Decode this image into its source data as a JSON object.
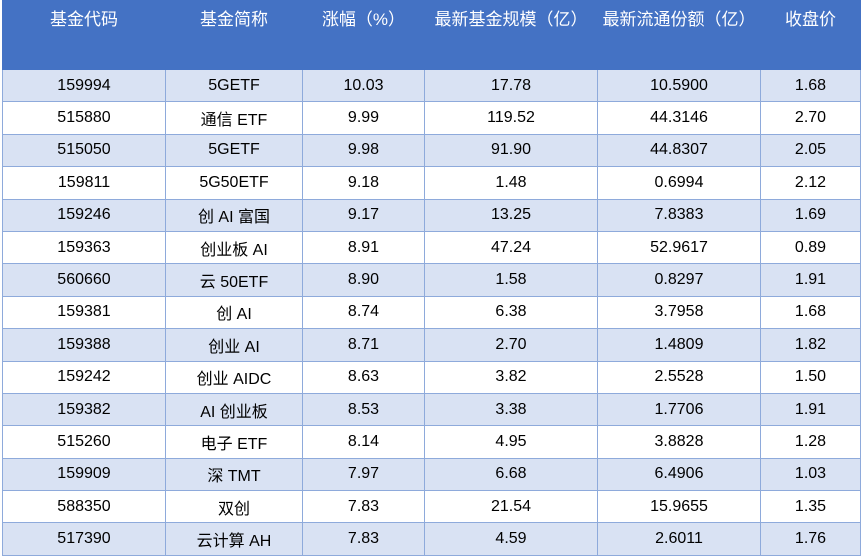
{
  "table": {
    "header": [
      "基金代码",
      "基金简称",
      "涨幅（%）",
      "最新基金规模（亿）",
      "最新流通份额（亿）",
      "收盘价"
    ],
    "rows": [
      [
        "159994",
        "5GETF",
        "10.03",
        "17.78",
        "10.5900",
        "1.68"
      ],
      [
        "515880",
        "通信 ETF",
        "9.99",
        "119.52",
        "44.3146",
        "2.70"
      ],
      [
        "515050",
        "5GETF",
        "9.98",
        "91.90",
        "44.8307",
        "2.05"
      ],
      [
        "159811",
        "5G50ETF",
        "9.18",
        "1.48",
        "0.6994",
        "2.12"
      ],
      [
        "159246",
        "创 AI 富国",
        "9.17",
        "13.25",
        "7.8383",
        "1.69"
      ],
      [
        "159363",
        "创业板 AI",
        "8.91",
        "47.24",
        "52.9617",
        "0.89"
      ],
      [
        "560660",
        "云 50ETF",
        "8.90",
        "1.58",
        "0.8297",
        "1.91"
      ],
      [
        "159381",
        "创 AI",
        "8.74",
        "6.38",
        "3.7958",
        "1.68"
      ],
      [
        "159388",
        "创业 AI",
        "8.71",
        "2.70",
        "1.4809",
        "1.82"
      ],
      [
        "159242",
        "创业 AIDC",
        "8.63",
        "3.82",
        "2.5528",
        "1.50"
      ],
      [
        "159382",
        "AI 创业板",
        "8.53",
        "3.38",
        "1.7706",
        "1.91"
      ],
      [
        "515260",
        "电子 ETF",
        "8.14",
        "4.95",
        "3.8828",
        "1.28"
      ],
      [
        "159909",
        "深 TMT",
        "7.97",
        "6.68",
        "6.4906",
        "1.03"
      ],
      [
        "588350",
        "双创",
        "7.83",
        "21.54",
        "15.9655",
        "1.35"
      ],
      [
        "517390",
        "云计算 AH",
        "7.83",
        "4.59",
        "2.6011",
        "1.76"
      ]
    ]
  }
}
